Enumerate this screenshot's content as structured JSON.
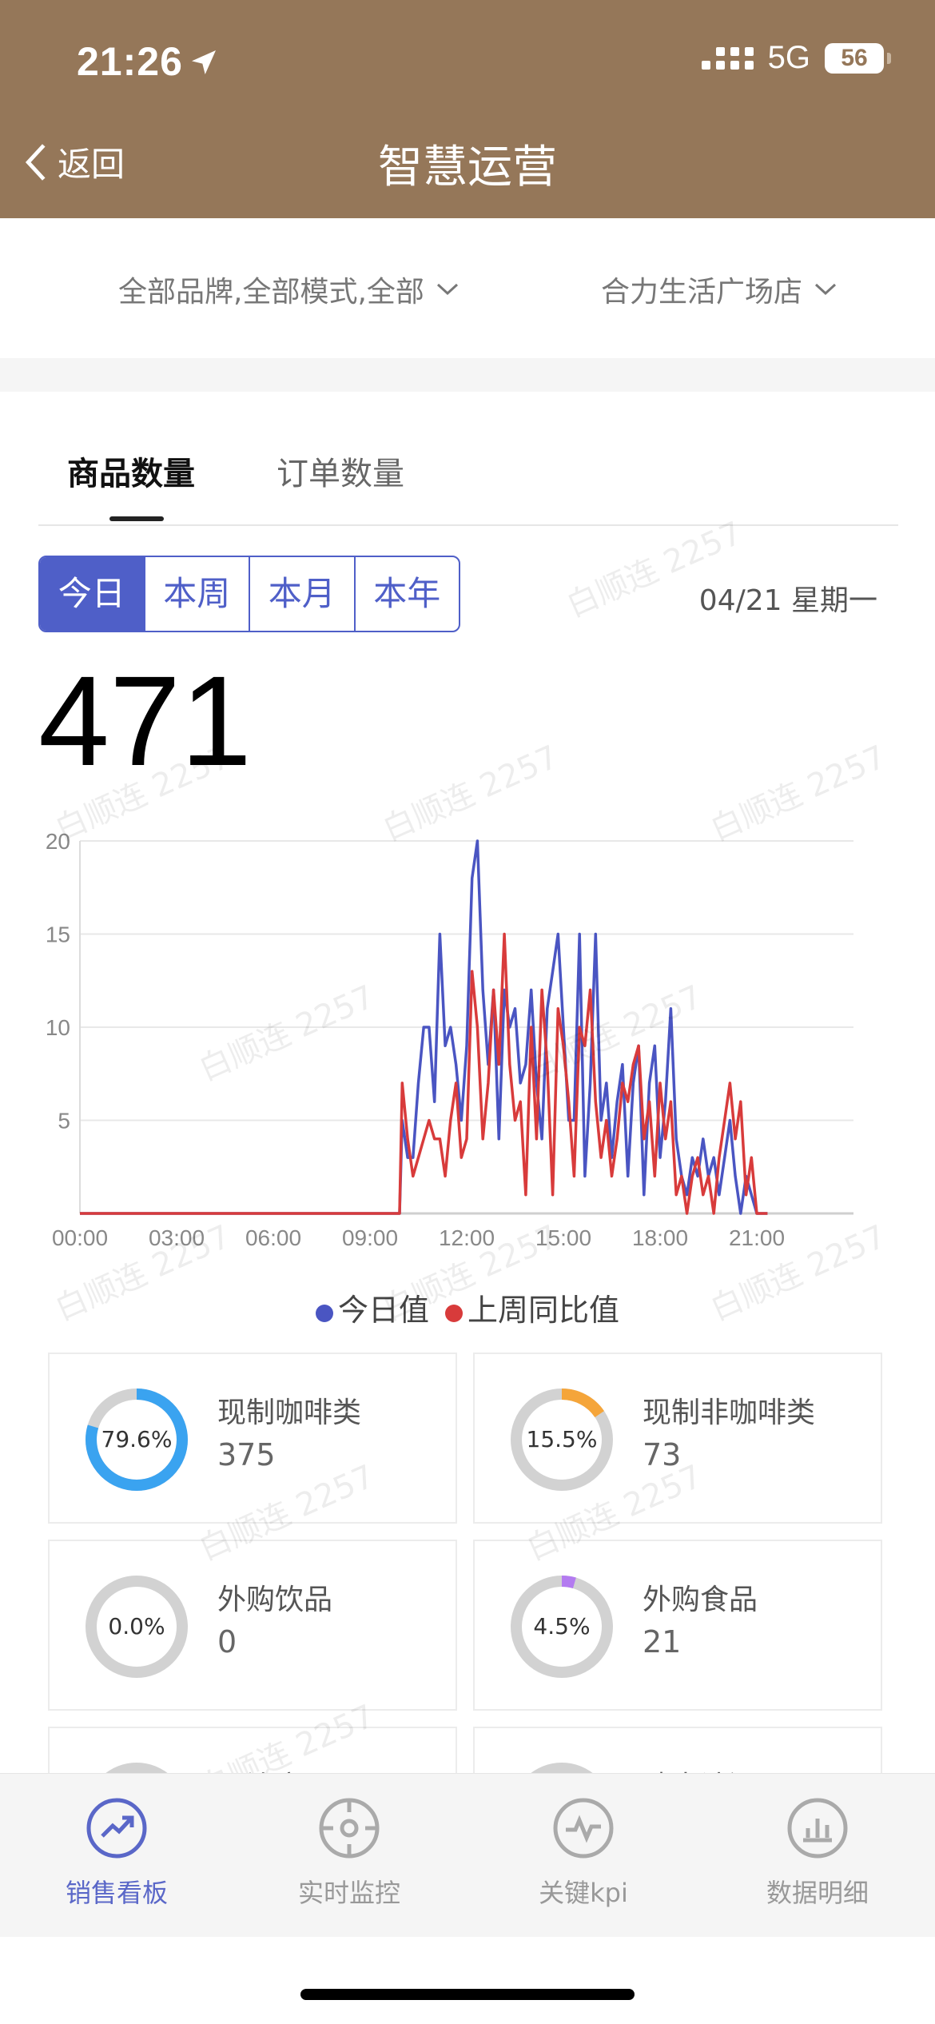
{
  "status_bar": {
    "time": "21:26",
    "network": "5G",
    "battery": "56"
  },
  "header": {
    "back_label": "返回",
    "title": "智慧运营"
  },
  "filters": {
    "brand_filter": "全部品牌,全部模式,全部",
    "store_filter": "合力生活广场店"
  },
  "tabs": [
    {
      "label": "商品数量",
      "active": true
    },
    {
      "label": "订单数量",
      "active": false
    }
  ],
  "period_segments": [
    {
      "label": "今日",
      "active": true
    },
    {
      "label": "本周"
    },
    {
      "label": "本月"
    },
    {
      "label": "本年"
    }
  ],
  "date_label": "04/21 星期一",
  "total_value": "471",
  "chart_data": {
    "type": "line",
    "x_ticks": [
      "00:00",
      "03:00",
      "06:00",
      "09:00",
      "12:00",
      "15:00",
      "18:00",
      "21:00"
    ],
    "y_ticks": [
      20,
      15,
      10,
      5
    ],
    "ylim": [
      0,
      20
    ],
    "x_range_minutes": [
      0,
      1440
    ],
    "grid": true,
    "series": [
      {
        "name": "今日值",
        "color": "#4a55c2",
        "points": [
          [
            0,
            0
          ],
          [
            595,
            0
          ],
          [
            600,
            5
          ],
          [
            610,
            3
          ],
          [
            620,
            3
          ],
          [
            630,
            7
          ],
          [
            640,
            10
          ],
          [
            650,
            10
          ],
          [
            660,
            6
          ],
          [
            670,
            15
          ],
          [
            680,
            9
          ],
          [
            690,
            10
          ],
          [
            700,
            8
          ],
          [
            710,
            5
          ],
          [
            720,
            9
          ],
          [
            730,
            18
          ],
          [
            740,
            20
          ],
          [
            750,
            12
          ],
          [
            760,
            8
          ],
          [
            770,
            12
          ],
          [
            780,
            4
          ],
          [
            790,
            12
          ],
          [
            800,
            10
          ],
          [
            810,
            11
          ],
          [
            820,
            7
          ],
          [
            830,
            8
          ],
          [
            840,
            12
          ],
          [
            850,
            7
          ],
          [
            860,
            4
          ],
          [
            870,
            11
          ],
          [
            880,
            13
          ],
          [
            890,
            15
          ],
          [
            900,
            10
          ],
          [
            910,
            5
          ],
          [
            920,
            5
          ],
          [
            930,
            15
          ],
          [
            940,
            2
          ],
          [
            950,
            7
          ],
          [
            960,
            15
          ],
          [
            970,
            5
          ],
          [
            980,
            7
          ],
          [
            990,
            3
          ],
          [
            1000,
            6
          ],
          [
            1010,
            8
          ],
          [
            1020,
            2
          ],
          [
            1030,
            7
          ],
          [
            1040,
            9
          ],
          [
            1050,
            1
          ],
          [
            1060,
            7
          ],
          [
            1070,
            9
          ],
          [
            1080,
            3
          ],
          [
            1090,
            6
          ],
          [
            1100,
            11
          ],
          [
            1110,
            4
          ],
          [
            1120,
            2
          ],
          [
            1130,
            1
          ],
          [
            1140,
            3
          ],
          [
            1150,
            2
          ],
          [
            1160,
            4
          ],
          [
            1170,
            2
          ],
          [
            1180,
            3
          ],
          [
            1190,
            1
          ],
          [
            1200,
            3
          ],
          [
            1210,
            5
          ],
          [
            1220,
            2
          ],
          [
            1230,
            0
          ],
          [
            1240,
            2
          ],
          [
            1250,
            1
          ],
          [
            1260,
            0
          ],
          [
            1280,
            0
          ]
        ]
      },
      {
        "name": "上周同比值",
        "color": "#d83b3b",
        "points": [
          [
            0,
            0
          ],
          [
            595,
            0
          ],
          [
            600,
            7
          ],
          [
            610,
            4
          ],
          [
            620,
            2
          ],
          [
            630,
            3
          ],
          [
            640,
            4
          ],
          [
            650,
            5
          ],
          [
            660,
            4
          ],
          [
            670,
            4
          ],
          [
            680,
            2
          ],
          [
            690,
            5
          ],
          [
            700,
            7
          ],
          [
            710,
            3
          ],
          [
            720,
            4
          ],
          [
            730,
            13
          ],
          [
            740,
            10
          ],
          [
            750,
            4
          ],
          [
            760,
            7
          ],
          [
            770,
            12
          ],
          [
            780,
            8
          ],
          [
            790,
            15
          ],
          [
            800,
            8
          ],
          [
            810,
            5
          ],
          [
            820,
            6
          ],
          [
            830,
            1
          ],
          [
            840,
            10
          ],
          [
            850,
            4
          ],
          [
            860,
            12
          ],
          [
            870,
            8
          ],
          [
            880,
            1
          ],
          [
            890,
            11
          ],
          [
            900,
            9
          ],
          [
            910,
            6
          ],
          [
            920,
            2
          ],
          [
            930,
            10
          ],
          [
            940,
            9
          ],
          [
            950,
            12
          ],
          [
            960,
            6
          ],
          [
            970,
            3
          ],
          [
            980,
            5
          ],
          [
            990,
            2
          ],
          [
            1000,
            4
          ],
          [
            1010,
            7
          ],
          [
            1020,
            6
          ],
          [
            1030,
            8
          ],
          [
            1040,
            9
          ],
          [
            1050,
            4
          ],
          [
            1060,
            6
          ],
          [
            1070,
            2
          ],
          [
            1080,
            7
          ],
          [
            1090,
            4
          ],
          [
            1100,
            6
          ],
          [
            1110,
            1
          ],
          [
            1120,
            2
          ],
          [
            1130,
            0
          ],
          [
            1140,
            2
          ],
          [
            1150,
            3
          ],
          [
            1160,
            1
          ],
          [
            1170,
            2
          ],
          [
            1180,
            0
          ],
          [
            1190,
            3
          ],
          [
            1200,
            5
          ],
          [
            1210,
            7
          ],
          [
            1220,
            4
          ],
          [
            1230,
            6
          ],
          [
            1240,
            1
          ],
          [
            1250,
            3
          ],
          [
            1260,
            0
          ],
          [
            1280,
            0
          ]
        ]
      }
    ]
  },
  "categories": [
    {
      "name": "现制咖啡类",
      "count": "375",
      "percent": "79.6%",
      "ratio": 0.796,
      "color": "#3aa3f0"
    },
    {
      "name": "现制非咖啡类",
      "count": "73",
      "percent": "15.5%",
      "ratio": 0.155,
      "color": "#f5a53a"
    },
    {
      "name": "外购饮品",
      "count": "0",
      "percent": "0.0%",
      "ratio": 0.0,
      "color": "#3aa3f0"
    },
    {
      "name": "外购食品",
      "count": "21",
      "percent": "4.5%",
      "ratio": 0.045,
      "color": "#b37bf0"
    },
    {
      "name": "周边商品",
      "count": "",
      "percent": "",
      "ratio": 0.0,
      "color": "#f0a0a0"
    },
    {
      "name": "瑞幸诗酒",
      "count": "",
      "percent": "",
      "ratio": 0.0,
      "color": "#f0a0a0"
    }
  ],
  "watermark": "白顺连 2257",
  "bottom_nav": [
    {
      "label": "销售看板",
      "icon": "trend-chart-icon",
      "active": true
    },
    {
      "label": "实时监控",
      "icon": "crosshair-icon",
      "active": false
    },
    {
      "label": "关键kpi",
      "icon": "pulse-icon",
      "active": false
    },
    {
      "label": "数据明细",
      "icon": "bar-chart-icon",
      "active": false
    }
  ]
}
